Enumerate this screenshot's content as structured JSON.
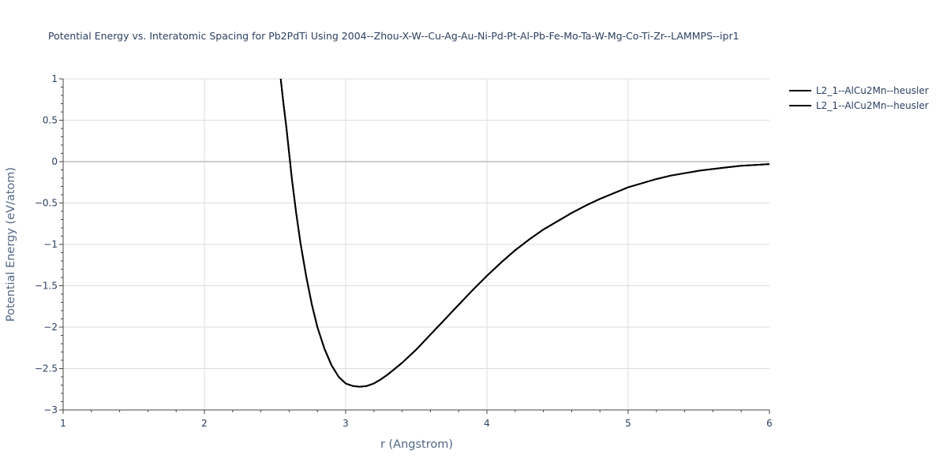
{
  "chart_data": {
    "type": "line",
    "title": "Potential Energy vs. Interatomic Spacing for Pb2PdTi Using 2004--Zhou-X-W--Cu-Ag-Au-Ni-Pd-Pt-Al-Pb-Fe-Mo-Ta-W-Mg-Co-Ti-Zr--LAMMPS--ipr1",
    "xlabel": "r (Angstrom)",
    "ylabel": "Potential Energy (eV/atom)",
    "xlim": [
      1,
      6
    ],
    "ylim": [
      -3,
      1
    ],
    "xticks": [
      "1",
      "2",
      "3",
      "4",
      "5",
      "6"
    ],
    "yticks": [
      "1",
      "0.5",
      "0",
      "−0.5",
      "−1",
      "−1.5",
      "−2",
      "−2.5",
      "−3"
    ],
    "grid": true,
    "legend_position": "top-right",
    "series": [
      {
        "name": "L2_1--AlCu2Mn--heusler",
        "color": "#000000",
        "x": [
          2.54,
          2.56,
          2.58,
          2.6,
          2.62,
          2.65,
          2.68,
          2.72,
          2.76,
          2.8,
          2.85,
          2.9,
          2.95,
          3.0,
          3.05,
          3.1,
          3.15,
          3.2,
          3.25,
          3.3,
          3.4,
          3.5,
          3.6,
          3.7,
          3.8,
          3.9,
          4.0,
          4.1,
          4.2,
          4.3,
          4.4,
          4.5,
          4.6,
          4.7,
          4.8,
          4.9,
          5.0,
          5.1,
          5.2,
          5.3,
          5.4,
          5.5,
          5.6,
          5.7,
          5.8,
          5.9,
          6.0
        ],
        "y": [
          1.0,
          0.7,
          0.42,
          0.1,
          -0.22,
          -0.62,
          -0.98,
          -1.38,
          -1.72,
          -2.0,
          -2.26,
          -2.46,
          -2.6,
          -2.68,
          -2.71,
          -2.72,
          -2.71,
          -2.68,
          -2.63,
          -2.57,
          -2.43,
          -2.27,
          -2.09,
          -1.91,
          -1.73,
          -1.55,
          -1.38,
          -1.22,
          -1.07,
          -0.94,
          -0.82,
          -0.72,
          -0.62,
          -0.53,
          -0.45,
          -0.38,
          -0.31,
          -0.26,
          -0.21,
          -0.17,
          -0.14,
          -0.11,
          -0.09,
          -0.07,
          -0.05,
          -0.04,
          -0.03
        ]
      },
      {
        "name": "L2_1--AlCu2Mn--heusler",
        "color": "#000000",
        "x": [
          2.54,
          2.56,
          2.58,
          2.6,
          2.62,
          2.65,
          2.68,
          2.72,
          2.76,
          2.8,
          2.85,
          2.9,
          2.95,
          3.0,
          3.05,
          3.1,
          3.15,
          3.2,
          3.25,
          3.3,
          3.4,
          3.5,
          3.6,
          3.7,
          3.8,
          3.9,
          4.0,
          4.1,
          4.2,
          4.3,
          4.4,
          4.5,
          4.6,
          4.7,
          4.8,
          4.9,
          5.0,
          5.1,
          5.2,
          5.3,
          5.4,
          5.5,
          5.6,
          5.7,
          5.8,
          5.9,
          6.0
        ],
        "y": [
          1.0,
          0.7,
          0.42,
          0.1,
          -0.22,
          -0.62,
          -0.98,
          -1.38,
          -1.72,
          -2.0,
          -2.26,
          -2.46,
          -2.6,
          -2.68,
          -2.71,
          -2.72,
          -2.71,
          -2.68,
          -2.63,
          -2.57,
          -2.43,
          -2.27,
          -2.09,
          -1.91,
          -1.73,
          -1.55,
          -1.38,
          -1.22,
          -1.07,
          -0.94,
          -0.82,
          -0.72,
          -0.62,
          -0.53,
          -0.45,
          -0.38,
          -0.31,
          -0.26,
          -0.21,
          -0.17,
          -0.14,
          -0.11,
          -0.09,
          -0.07,
          -0.05,
          -0.04,
          -0.03
        ]
      }
    ]
  }
}
